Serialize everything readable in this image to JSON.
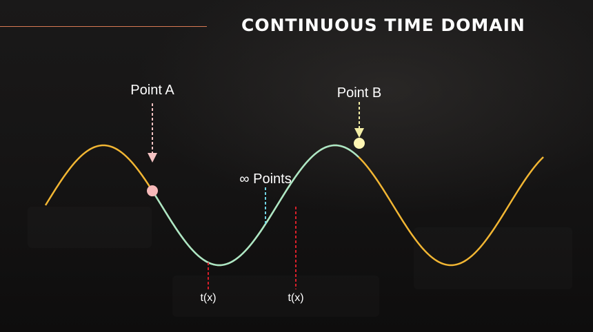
{
  "title": "CONTINUOUS TIME DOMAIN",
  "labels": {
    "point_a": "Point A",
    "point_b": "Point B",
    "infinite_points": "∞ Points",
    "t_left": "t(x)",
    "t_right": "t(x)"
  },
  "colors": {
    "accent_line": "#d97a54",
    "wave": "#f2b633",
    "highlight": "#a9e6c8",
    "point_a": "#f6b9b9",
    "point_a_arrow": "#f4c2c2",
    "point_b": "#fff6b3",
    "point_b_arrow": "#f3eea6",
    "infinite_marker": "#6fd3e3",
    "time_markers": "#d9202a"
  }
}
